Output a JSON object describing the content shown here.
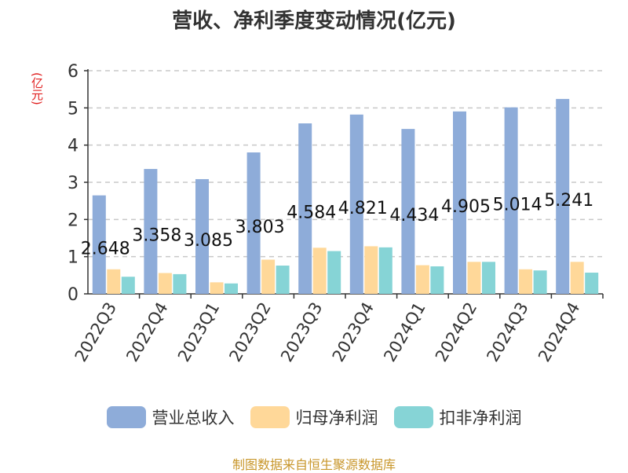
{
  "title": "营收、净利季度变动情况(亿元)",
  "unit_label": "(亿元)",
  "source": "制图数据来自恒生聚源数据库",
  "colors": {
    "revenue": "#8eacd9",
    "net_profit": "#ffd899",
    "deducted_profit": "#86d4d6",
    "grid": "#c8c8c8",
    "axis": "#333333",
    "unit_text": "#e02020",
    "source_text": "#c8962a"
  },
  "legend": [
    {
      "label": "营业总收入",
      "color": "#8eacd9"
    },
    {
      "label": "归母净利润",
      "color": "#ffd899"
    },
    {
      "label": "扣非净利润",
      "color": "#86d4d6"
    }
  ],
  "chart_data": {
    "type": "bar",
    "title": "营收、净利季度变动情况(亿元)",
    "ylabel": "(亿元)",
    "ylim": [
      0,
      6
    ],
    "yticks": [
      0,
      1,
      2,
      3,
      4,
      5,
      6
    ],
    "grid": true,
    "legend_position": "bottom",
    "categories": [
      "2022Q3",
      "2022Q4",
      "2023Q1",
      "2023Q2",
      "2023Q3",
      "2023Q4",
      "2024Q1",
      "2024Q2",
      "2024Q3",
      "2024Q4"
    ],
    "series": [
      {
        "name": "营业总收入",
        "values": [
          2.648,
          3.358,
          3.085,
          3.803,
          4.584,
          4.821,
          4.434,
          4.905,
          5.014,
          5.241
        ],
        "labels": [
          "2.648",
          "3.358",
          "3.085",
          "3.803",
          "4.584",
          "4.821",
          "4.434",
          "4.905",
          "5.014",
          "5.241"
        ]
      },
      {
        "name": "归母净利润",
        "values": [
          0.66,
          0.56,
          0.31,
          0.92,
          1.24,
          1.28,
          0.77,
          0.86,
          0.66,
          0.86
        ]
      },
      {
        "name": "扣非净利润",
        "values": [
          0.46,
          0.53,
          0.28,
          0.76,
          1.15,
          1.25,
          0.74,
          0.86,
          0.63,
          0.57
        ]
      }
    ]
  }
}
